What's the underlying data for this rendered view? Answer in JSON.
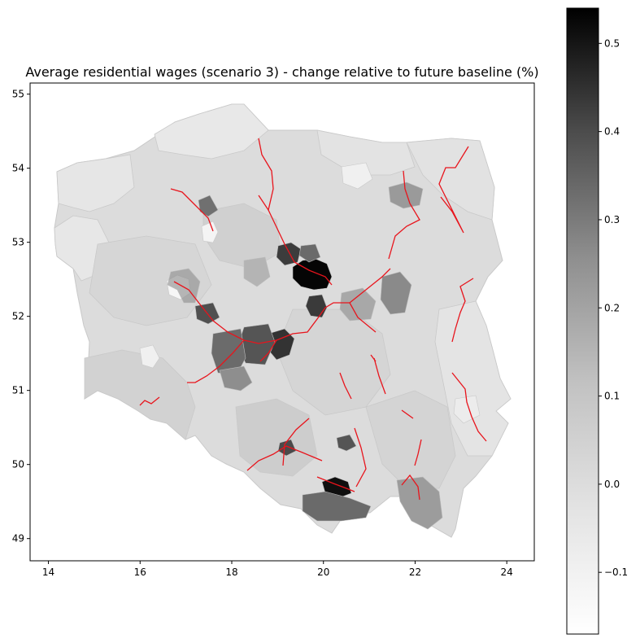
{
  "chart_data": {
    "type": "choropleth-map",
    "title": "Average residential wages (scenario 3) - change relative to future baseline (%)",
    "xlim": [
      13.6,
      24.6
    ],
    "ylim": [
      48.7,
      55.15
    ],
    "x_ticks": [
      "14",
      "16",
      "18",
      "20",
      "22",
      "24"
    ],
    "y_ticks": [
      "49",
      "50",
      "51",
      "52",
      "53",
      "54",
      "55"
    ],
    "colorbar": {
      "range": [
        -0.17,
        0.54
      ],
      "ticks": [
        "−0.1",
        "0.0",
        "0.1",
        "0.2",
        "0.3",
        "0.4",
        "0.5"
      ],
      "colormap": "Greys"
    },
    "colors": {
      "line": "#e8141c",
      "border": "#c9c9c9",
      "base_fill": "#dcdcdc"
    }
  }
}
